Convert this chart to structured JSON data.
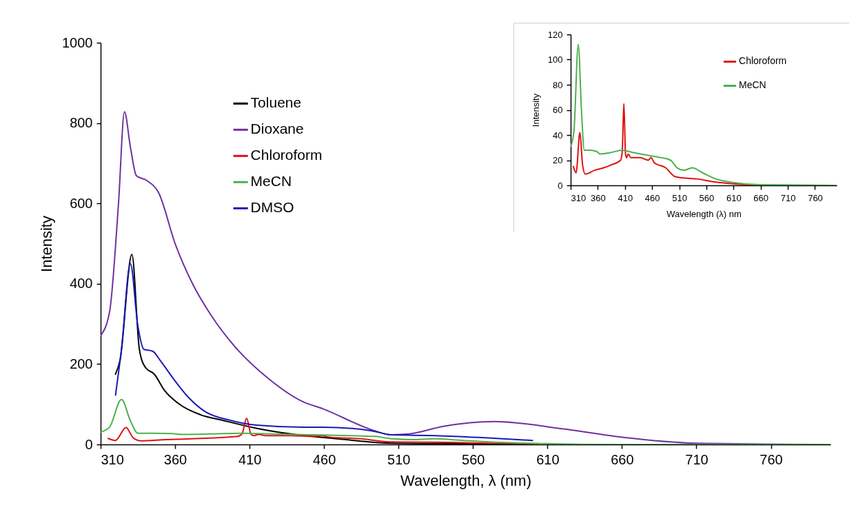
{
  "chart_data": [
    {
      "type": "line",
      "xlabel": "Wavelength, λ (nm)",
      "ylabel": "Intensity",
      "xlim": [
        310,
        800
      ],
      "xticks": [
        310,
        360,
        410,
        460,
        510,
        560,
        610,
        660,
        710,
        760
      ],
      "ylim": [
        0,
        1000
      ],
      "yticks": [
        0,
        200,
        400,
        600,
        800,
        1000
      ],
      "grid": false,
      "legend": "top left",
      "series": [
        {
          "name": "Toluene",
          "color": "#000000",
          "x": [
            320,
            323,
            331,
            336,
            340,
            346,
            353,
            363,
            377,
            392,
            415,
            438,
            460,
            480,
            505,
            540,
            600
          ],
          "values": [
            175,
            209,
            473,
            237,
            192,
            175,
            134,
            100,
            74,
            60,
            40,
            26,
            17,
            10,
            3,
            2,
            1
          ]
        },
        {
          "name": "Dioxane",
          "color": "#7030a0",
          "x": [
            310,
            316,
            322,
            326,
            330,
            334,
            341,
            349,
            360,
            372,
            385,
            400,
            423,
            446,
            459,
            494,
            505,
            517,
            540,
            574,
            622,
            660,
            710,
            760,
            800
          ],
          "values": [
            271,
            330,
            600,
            828,
            740,
            669,
            657,
            626,
            500,
            398,
            317,
            244,
            163,
            106,
            89,
            34,
            24,
            26,
            45,
            57,
            38,
            18,
            3,
            1,
            0
          ]
        },
        {
          "name": "Chloroform",
          "color": "#e01010",
          "x": [
            315,
            320,
            327,
            332,
            337,
            354,
            371,
            383,
            402,
            405,
            408,
            411,
            413,
            416,
            421,
            438,
            453,
            458,
            464,
            485,
            502,
            515,
            545,
            570,
            604
          ],
          "values": [
            15,
            10,
            42,
            16,
            9,
            12,
            14,
            16,
            20,
            27,
            65,
            25,
            22,
            25,
            22,
            22,
            20,
            22,
            18,
            14,
            7,
            6,
            5,
            3,
            2
          ]
        },
        {
          "name": "MeCN",
          "color": "#4cb050",
          "x": [
            310,
            316,
            324,
            330,
            335,
            345,
            358,
            364,
            383,
            405,
            426,
            451,
            477,
            494,
            506,
            519,
            534,
            553,
            578,
            608,
            659,
            800
          ],
          "values": [
            31,
            43,
            112,
            59,
            28,
            28,
            27,
            25,
            26,
            28,
            26,
            24,
            22,
            20,
            14,
            12,
            14,
            10,
            5,
            2,
            0,
            0
          ]
        },
        {
          "name": "DMSO",
          "color": "#1a1ab4",
          "x": [
            320,
            324,
            330,
            335,
            339,
            345,
            350,
            360,
            369,
            380,
            397,
            415,
            446,
            459,
            492,
            505,
            535,
            566,
            600
          ],
          "values": [
            123,
            237,
            450,
            295,
            237,
            232,
            209,
            158,
            117,
            82,
            60,
            48,
            43,
            43,
            34,
            24,
            22,
            17,
            10
          ]
        }
      ]
    },
    {
      "type": "line",
      "xlabel": "Wavelength (λ) nm",
      "ylabel": "Intensity",
      "xlim": [
        310,
        800
      ],
      "xticks": [
        310,
        360,
        410,
        460,
        510,
        560,
        610,
        660,
        710,
        760
      ],
      "ylim": [
        0,
        120
      ],
      "yticks": [
        0,
        20,
        40,
        60,
        80,
        100,
        120
      ],
      "grid": false,
      "legend": "top right",
      "series": [
        {
          "name": "Chloroform",
          "color": "#e01010",
          "x": [
            315,
            320,
            327,
            332,
            337,
            354,
            371,
            383,
            402,
            405,
            408,
            411,
            413,
            416,
            421,
            438,
            453,
            458,
            464,
            485,
            502,
            515,
            545,
            570,
            604,
            651,
            800
          ],
          "values": [
            15,
            10,
            42,
            16,
            9,
            12,
            14,
            16,
            20,
            27,
            65,
            25,
            22,
            25,
            22,
            22,
            20,
            22,
            18,
            14,
            7,
            6,
            5,
            3,
            1.5,
            0.2,
            0
          ]
        },
        {
          "name": "MeCN",
          "color": "#4cb050",
          "x": [
            310,
            316,
            324,
            330,
            335,
            345,
            358,
            364,
            383,
            405,
            426,
            451,
            477,
            494,
            506,
            519,
            534,
            553,
            578,
            608,
            659,
            800
          ],
          "values": [
            31,
            43,
            112,
            59,
            28,
            28,
            27,
            25,
            26,
            28,
            26,
            24,
            22,
            20,
            14,
            12,
            14,
            10,
            5,
            2.4,
            0.5,
            0
          ]
        }
      ]
    }
  ]
}
